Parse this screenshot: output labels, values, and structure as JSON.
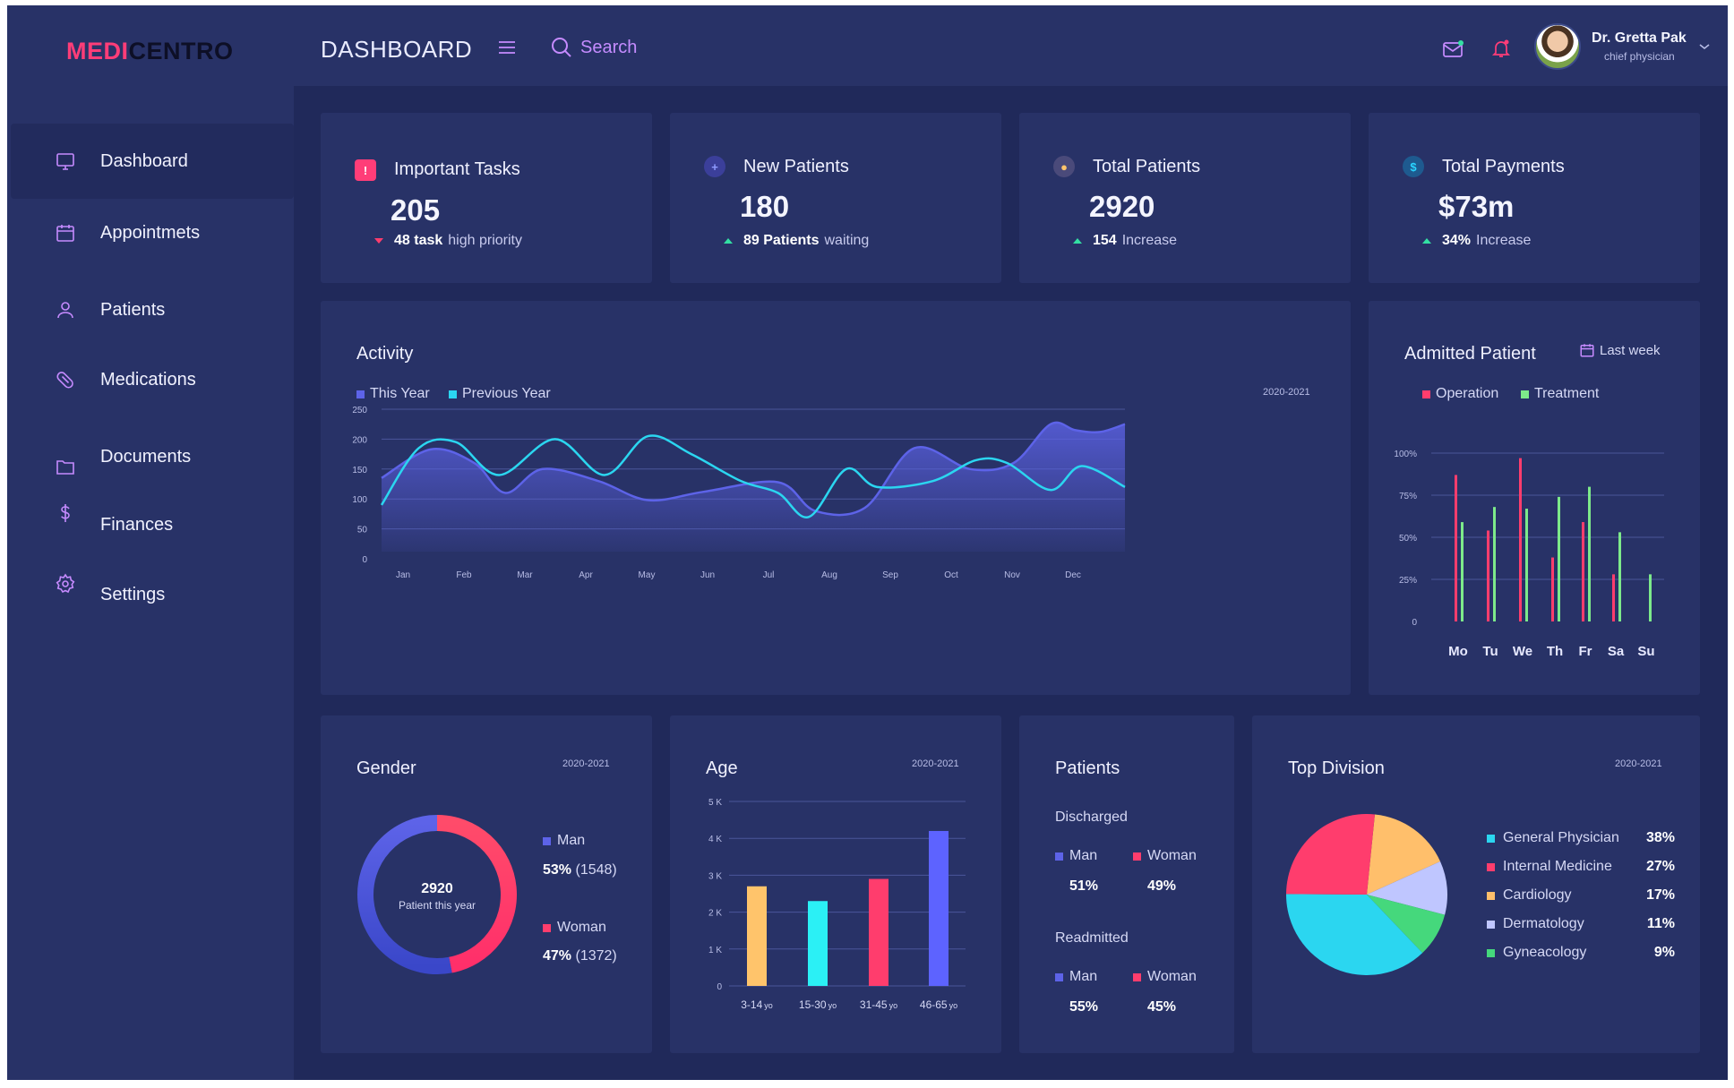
{
  "app": {
    "logo_part1": "MEDI",
    "logo_part2": "CENTRO"
  },
  "header": {
    "title": "DASHBOARD",
    "search_placeholder": "Search",
    "user_name": "Dr. Gretta Pak",
    "user_role": "chief physician"
  },
  "sidebar": {
    "items": [
      {
        "label": "Dashboard",
        "icon": "monitor-icon",
        "active": true
      },
      {
        "label": "Appointmets",
        "icon": "calendar-icon"
      },
      {
        "label": "Patients",
        "icon": "user-icon"
      },
      {
        "label": "Medications",
        "icon": "pill-icon"
      },
      {
        "label": "Documents",
        "icon": "folder-icon"
      },
      {
        "label": "Finances",
        "icon": "dollar-icon"
      },
      {
        "label": "Settings",
        "icon": "gear-icon"
      }
    ]
  },
  "stats": [
    {
      "title": "Important Tasks",
      "value": "205",
      "sub_bold": "48 task",
      "sub_text": "high priority",
      "trend": "down",
      "icon": "alert-icon",
      "icon_color": "#ff3d78"
    },
    {
      "title": "New Patients",
      "value": "180",
      "sub_bold": "89 Patients",
      "sub_text": "waiting",
      "trend": "up",
      "icon": "add-user-icon",
      "icon_color": "#6f7bff"
    },
    {
      "title": "Total Patients",
      "value": "2920",
      "sub_bold": "154",
      "sub_text": "Increase",
      "trend": "up",
      "icon": "person-icon",
      "icon_color": "#ffc46b"
    },
    {
      "title": "Total Payments",
      "value": "$73m",
      "sub_bold": "34%",
      "sub_text": "Increase",
      "trend": "up",
      "icon": "dollar-circle-icon",
      "icon_color": "#2ad4ff"
    }
  ],
  "activity": {
    "title": "Activity",
    "period": "2020-2021",
    "legend": [
      "This Year",
      "Previous Year"
    ],
    "colors": {
      "this_year": "#5d63e8",
      "previous_year": "#2bd6f0"
    }
  },
  "admitted": {
    "title": "Admitted Patient",
    "filter": "Last week",
    "legend": [
      "Operation",
      "Treatment"
    ],
    "colors": {
      "operation": "#ff3d6d",
      "treatment": "#7dea8a"
    }
  },
  "gender": {
    "title": "Gender",
    "period": "2020-2021",
    "center_value": "2920",
    "center_label": "Patient this year",
    "man_label": "Man",
    "man_pct": "53%",
    "man_count": "(1548)",
    "woman_label": "Woman",
    "woman_pct": "47%",
    "woman_count": "(1372)"
  },
  "age": {
    "title": "Age",
    "period": "2020-2021"
  },
  "patients": {
    "title": "Patients",
    "discharged_label": "Discharged",
    "discharged_man_label": "Man",
    "discharged_man": "51%",
    "discharged_woman_label": "Woman",
    "discharged_woman": "49%",
    "readmitted_label": "Readmitted",
    "readmitted_man_label": "Man",
    "readmitted_man": "55%",
    "readmitted_woman_label": "Woman",
    "readmitted_woman": "45%"
  },
  "division": {
    "title": "Top Division",
    "period": "2020-2021",
    "items": [
      {
        "name": "General Physician",
        "pct": "38%",
        "color": "#2bd6f0"
      },
      {
        "name": "Internal Medicine",
        "pct": "27%",
        "color": "#ff3d6d"
      },
      {
        "name": "Cardiology",
        "pct": "17%",
        "color": "#ffbf6b"
      },
      {
        "name": "Dermatology",
        "pct": "11%",
        "color": "#bfc6ff"
      },
      {
        "name": "Gyneacology",
        "pct": "9%",
        "color": "#45d87c"
      }
    ]
  },
  "chart_data": [
    {
      "type": "area",
      "title": "Activity",
      "categories": [
        "Jan",
        "Feb",
        "Mar",
        "Apr",
        "May",
        "Jun",
        "Jul",
        "Aug",
        "Sep",
        "Oct",
        "Nov",
        "Dec"
      ],
      "yticks": [
        0,
        50,
        100,
        150,
        200,
        250
      ],
      "ylim": [
        0,
        250
      ],
      "series": [
        {
          "name": "This Year",
          "x": [
            0,
            0.8,
            1.5,
            2,
            2.6,
            3.5,
            4.3,
            5.2,
            6.4,
            7,
            7.8,
            8.6,
            9.5,
            10.2,
            10.8,
            11.2,
            11.6,
            12
          ],
          "values": [
            135,
            183,
            160,
            110,
            150,
            130,
            98,
            112,
            128,
            80,
            85,
            185,
            150,
            160,
            225,
            215,
            212,
            225
          ]
        },
        {
          "name": "Previous Year",
          "x": [
            0,
            0.6,
            1.2,
            1.9,
            2.8,
            3.6,
            4.3,
            5,
            5.8,
            6.4,
            6.9,
            7.5,
            8,
            8.9,
            9.6,
            10.1,
            10.8,
            11.3,
            12
          ],
          "values": [
            90,
            185,
            195,
            140,
            200,
            140,
            205,
            175,
            130,
            110,
            70,
            150,
            120,
            130,
            165,
            160,
            115,
            155,
            120
          ]
        }
      ]
    },
    {
      "type": "bar",
      "title": "Admitted Patient",
      "categories": [
        "Mo",
        "Tu",
        "We",
        "Th",
        "Fr",
        "Sa",
        "Su"
      ],
      "yticks": [
        "0",
        "25%",
        "50%",
        "75%",
        "100%"
      ],
      "ylim": [
        0,
        100
      ],
      "series": [
        {
          "name": "Operation",
          "values": [
            87,
            54,
            97,
            38,
            59,
            28,
            0
          ]
        },
        {
          "name": "Treatment",
          "values": [
            59,
            68,
            67,
            74,
            80,
            53,
            28
          ]
        }
      ]
    },
    {
      "type": "pie",
      "title": "Gender",
      "categories": [
        "Man",
        "Woman"
      ],
      "values": [
        53,
        47
      ]
    },
    {
      "type": "bar",
      "title": "Age",
      "categories": [
        "3-14",
        "15-30",
        "31-45",
        "46-65"
      ],
      "unit": "yo",
      "yticks": [
        "0",
        "1 K",
        "2 K",
        "3 K",
        "4 K",
        "5 K"
      ],
      "ylim": [
        0,
        5000
      ],
      "values": [
        2700,
        2300,
        2900,
        4200
      ],
      "colors": [
        "#ffc46b",
        "#2bf0f5",
        "#ff3d6d",
        "#5d63ff"
      ]
    },
    {
      "type": "pie",
      "title": "Top Division",
      "categories": [
        "General Physician",
        "Internal Medicine",
        "Cardiology",
        "Dermatology",
        "Gyneacology"
      ],
      "values": [
        38,
        27,
        17,
        11,
        9
      ]
    }
  ]
}
